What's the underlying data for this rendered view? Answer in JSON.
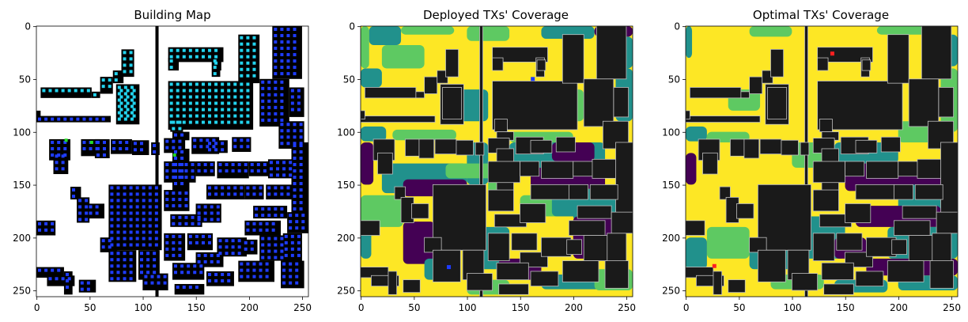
{
  "chart_data": [
    {
      "type": "heatmap",
      "title": "Building Map",
      "xlim": [
        0,
        255
      ],
      "ylim": [
        255,
        0
      ],
      "xticks": [
        0,
        50,
        100,
        150,
        200,
        250
      ],
      "yticks": [
        0,
        50,
        100,
        150,
        200,
        250
      ],
      "tick_labels_x": [
        "0",
        "50",
        "100",
        "150",
        "200",
        "250"
      ],
      "tick_labels_y": [
        "0",
        "50",
        "100",
        "150",
        "200",
        "250"
      ],
      "legend": "none",
      "colors": {
        "building": "#000000",
        "background": "#ffffff",
        "candidate_site": "#1e3cff",
        "deployed_site": "#22d3ee",
        "highlight_site": "#22dd22"
      },
      "highlight_sites": [
        {
          "x": 28,
          "y": 108
        },
        {
          "x": 52,
          "y": 110
        },
        {
          "x": 130,
          "y": 122
        }
      ]
    },
    {
      "type": "heatmap",
      "title": "Deployed TXs' Coverage",
      "xlim": [
        0,
        255
      ],
      "ylim": [
        255,
        0
      ],
      "xticks": [
        0,
        50,
        100,
        150,
        200,
        250
      ],
      "yticks": [
        0,
        50,
        100,
        150,
        200,
        250
      ],
      "tick_labels_x": [
        "0",
        "50",
        "100",
        "150",
        "200",
        "250"
      ],
      "tick_labels_y": [
        "0",
        "50",
        "100",
        "150",
        "200",
        "250"
      ],
      "legend": "none",
      "colormap": [
        "#440154",
        "#21918c",
        "#5ec962",
        "#fde725"
      ],
      "transmitters": [
        {
          "x": 162,
          "y": 50,
          "color": "#1e3cff"
        },
        {
          "x": 83,
          "y": 228,
          "color": "#1e3cff"
        }
      ]
    },
    {
      "type": "heatmap",
      "title": "Optimal TXs' Coverage",
      "xlim": [
        0,
        255
      ],
      "ylim": [
        255,
        0
      ],
      "xticks": [
        0,
        50,
        100,
        150,
        200,
        250
      ],
      "yticks": [
        0,
        50,
        100,
        150,
        200,
        250
      ],
      "tick_labels_x": [
        "0",
        "50",
        "100",
        "150",
        "200",
        "250"
      ],
      "tick_labels_y": [
        "0",
        "50",
        "100",
        "150",
        "200",
        "250"
      ],
      "legend": "none",
      "colormap": [
        "#440154",
        "#21918c",
        "#5ec962",
        "#fde725"
      ],
      "transmitters": [
        {
          "x": 138,
          "y": 26,
          "color": "#ff2020"
        },
        {
          "x": 27,
          "y": 227,
          "color": "#ff2020"
        }
      ]
    }
  ]
}
